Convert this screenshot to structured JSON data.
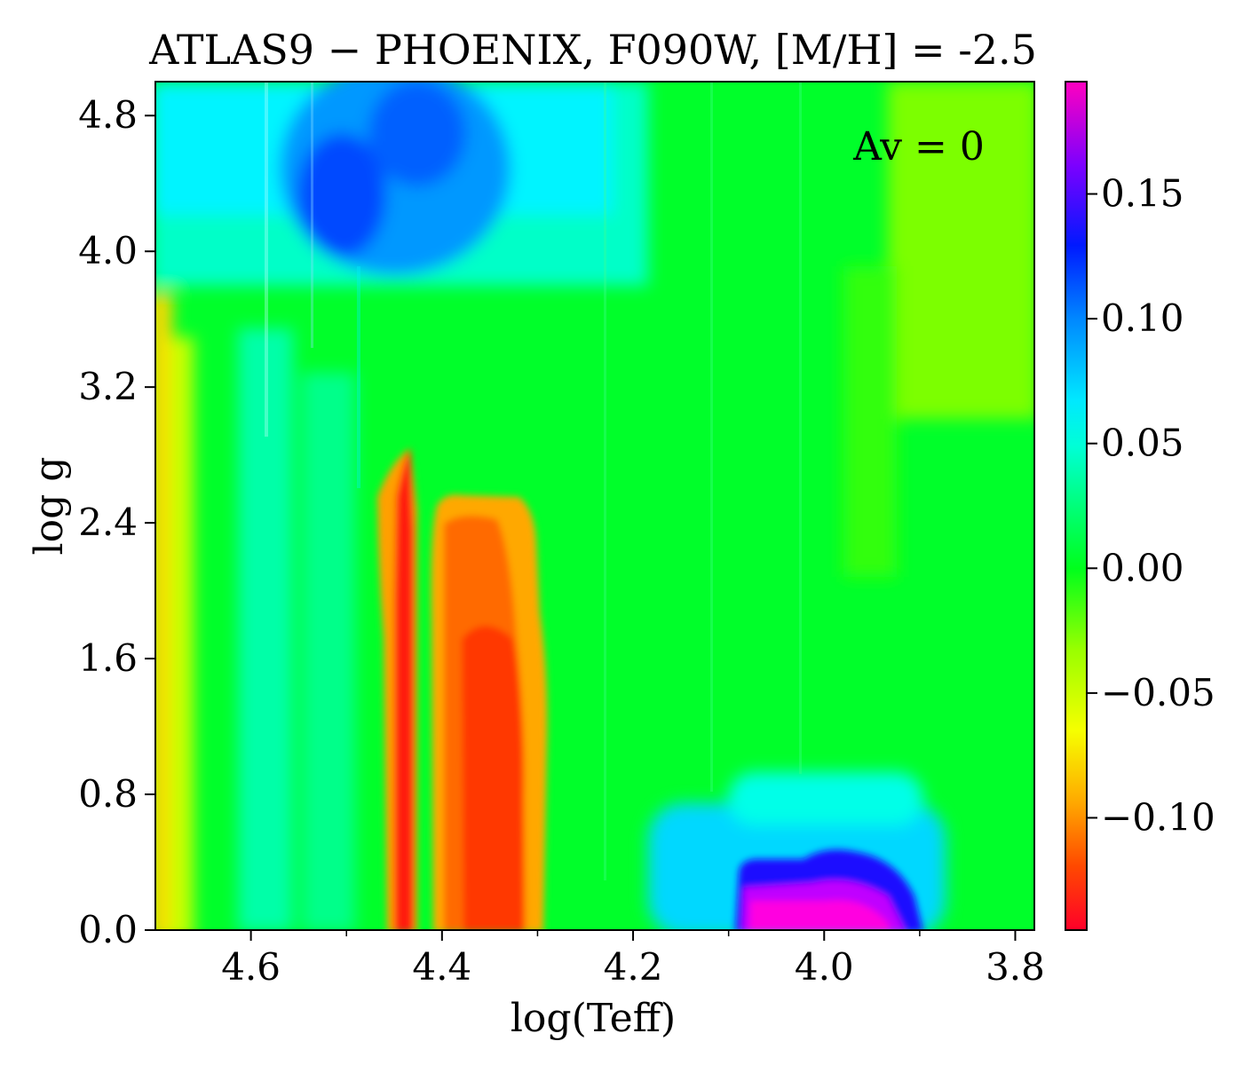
{
  "chart_data": {
    "type": "heatmap",
    "title": "ATLAS9 − PHOENIX, F090W, [M/H] = -2.5",
    "xlabel": "log(Teff)",
    "ylabel": "log g",
    "annotation": "Av = 0",
    "xlim": [
      4.7,
      3.78
    ],
    "ylim": [
      0.0,
      5.0
    ],
    "x_ticks": [
      {
        "value": 4.6,
        "label": "4.6"
      },
      {
        "value": 4.4,
        "label": "4.4"
      },
      {
        "value": 4.2,
        "label": "4.2"
      },
      {
        "value": 4.0,
        "label": "4.0"
      },
      {
        "value": 3.8,
        "label": "3.8"
      }
    ],
    "y_ticks": [
      {
        "value": 0.0,
        "label": "0.0"
      },
      {
        "value": 0.8,
        "label": "0.8"
      },
      {
        "value": 1.6,
        "label": "1.6"
      },
      {
        "value": 2.4,
        "label": "2.4"
      },
      {
        "value": 3.2,
        "label": "3.2"
      },
      {
        "value": 4.0,
        "label": "4.0"
      },
      {
        "value": 4.8,
        "label": "4.8"
      }
    ],
    "colorbar": {
      "colormap": "gist_rainbow",
      "vmin": -0.145,
      "vmax": 0.195,
      "ticks": [
        {
          "value": -0.1,
          "label": "−0.10"
        },
        {
          "value": -0.05,
          "label": "−0.05"
        },
        {
          "value": 0.0,
          "label": "0.00"
        },
        {
          "value": 0.05,
          "label": "0.05"
        },
        {
          "value": 0.1,
          "label": "0.10"
        },
        {
          "value": 0.15,
          "label": "0.15"
        }
      ]
    },
    "regions": [
      {
        "feature": "yellow band at hot edge",
        "teff": [
          4.7,
          4.67
        ],
        "logg": [
          0.0,
          3.7
        ],
        "value": -0.08
      },
      {
        "feature": "blue high-gravity region",
        "teff": [
          4.6,
          4.39
        ],
        "logg": [
          3.8,
          5.0
        ],
        "value": 0.09
      },
      {
        "feature": "red narrow spike",
        "teff": [
          4.45,
          4.42
        ],
        "logg": [
          0.0,
          2.9
        ],
        "value": -0.14
      },
      {
        "feature": "red-orange plume",
        "teff": [
          4.4,
          4.29
        ],
        "logg": [
          0.0,
          2.8
        ],
        "value": -0.12
      },
      {
        "feature": "magenta low-gravity blob",
        "teff": [
          4.09,
          3.93
        ],
        "logg": [
          0.0,
          0.4
        ],
        "value": 0.19
      },
      {
        "feature": "cyan low-gravity halo",
        "teff": [
          4.18,
          3.88
        ],
        "logg": [
          0.0,
          0.85
        ],
        "value": 0.05
      },
      {
        "feature": "light green cool edge",
        "teff": [
          3.9,
          3.78
        ],
        "logg": [
          3.0,
          5.0
        ],
        "value": -0.03
      }
    ]
  }
}
